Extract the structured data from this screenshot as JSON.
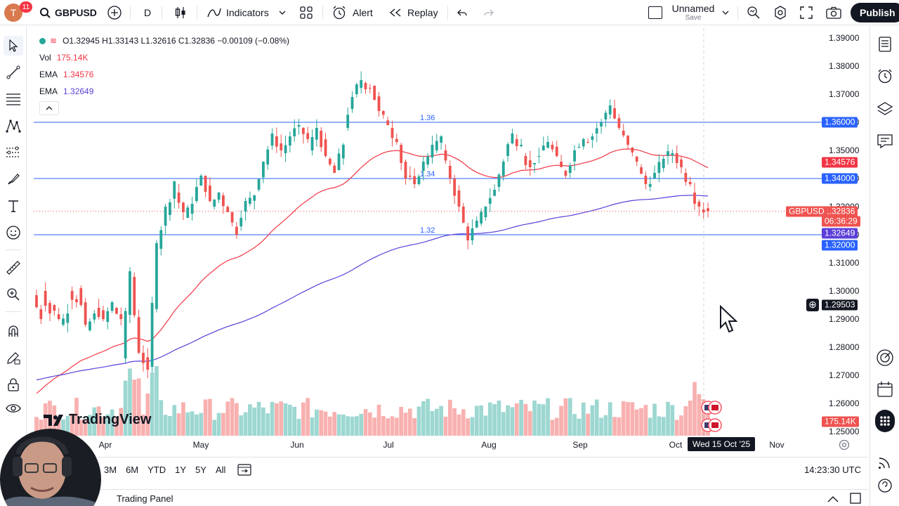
{
  "topbar": {
    "avatar_letter": "T",
    "notification_count": "11",
    "symbol": "GBPUSD",
    "interval": "D",
    "indicators_label": "Indicators",
    "alert_label": "Alert",
    "replay_label": "Replay",
    "layout_name": "Unnamed",
    "layout_status": "Save",
    "publish_label": "Publish"
  },
  "legend": {
    "ohlc": "O1.32945 H1.33143 L1.32616 C1.32836 −0.00109 (−0.08%)",
    "vol_label": "Vol",
    "vol_value": "175.14K",
    "ema1_label": "EMA",
    "ema1_value": "1.34576",
    "ema2_label": "EMA",
    "ema2_value": "1.32649"
  },
  "price_axis": {
    "ticks": [
      "1.39000",
      "1.38000",
      "1.37000",
      "1.36000",
      "1.35000",
      "1.34000",
      "1.33000",
      "1.32000",
      "1.31000",
      "1.30000",
      "1.29000",
      "1.28000",
      "1.27000",
      "1.26000",
      "1.25000"
    ],
    "labels": {
      "line_136": "1.36000",
      "ema50": "1.34576",
      "line_134": "1.34000",
      "last_price": "1.32836",
      "countdown": "06:36:29",
      "ema200": "1.32649",
      "line_132": "1.32000",
      "crosshair": "1.29503",
      "volume": "175.14K"
    },
    "symbol_tag": "GBPUSD"
  },
  "time_axis": {
    "ticks": [
      "Apr",
      "May",
      "Jun",
      "Jul",
      "Aug",
      "Sep",
      "Oct",
      "Nov"
    ],
    "crosshair_date": "Wed 15 Oct '25"
  },
  "level_labels": [
    "1.36",
    "1.34",
    "1.32"
  ],
  "watermark": "TradingView",
  "range_bar": {
    "ranges": [
      "3M",
      "6M",
      "YTD",
      "1Y",
      "5Y",
      "All"
    ],
    "clock": "14:23:30 UTC"
  },
  "panel": {
    "label": "Trading Panel"
  },
  "colors": {
    "up": "#26a69a",
    "down": "#ef5350",
    "ema50": "#f23645",
    "ema200": "#5b3fd8",
    "level_line": "#2962ff",
    "accent": "#2962ff"
  },
  "chart_data": {
    "type": "candlestick",
    "symbol": "GBPUSD",
    "interval": "1D",
    "x_range": [
      "2025-03-05",
      "2025-11-10"
    ],
    "ylim": [
      1.25,
      1.39
    ],
    "horizontal_levels": [
      1.36,
      1.34,
      1.32
    ],
    "last_price": 1.32836,
    "anchors": [
      [
        1.2985,
        1.29
      ],
      [
        1.3,
        1.292
      ],
      [
        1.295,
        1.29
      ],
      [
        1.288,
        1.292
      ],
      [
        1.3,
        1.296
      ],
      [
        1.301,
        1.288
      ],
      [
        1.286,
        1.292
      ],
      [
        1.294,
        1.29
      ],
      [
        1.289,
        1.296
      ],
      [
        1.294,
        1.29
      ],
      [
        1.276,
        1.307
      ],
      [
        1.305,
        1.278
      ],
      [
        1.278,
        1.272
      ],
      [
        1.273,
        1.317
      ],
      [
        1.315,
        1.33
      ],
      [
        1.327,
        1.339
      ],
      [
        1.335,
        1.328
      ],
      [
        1.326,
        1.331
      ],
      [
        1.332,
        1.341
      ],
      [
        1.341,
        1.332
      ],
      [
        1.33,
        1.335
      ],
      [
        1.334,
        1.328
      ],
      [
        1.328,
        1.32
      ],
      [
        1.323,
        1.332
      ],
      [
        1.331,
        1.334
      ],
      [
        1.336,
        1.346
      ],
      [
        1.345,
        1.356
      ],
      [
        1.355,
        1.35
      ],
      [
        1.349,
        1.355
      ],
      [
        1.355,
        1.359
      ],
      [
        1.358,
        1.354
      ],
      [
        1.35,
        1.358
      ],
      [
        1.357,
        1.348
      ],
      [
        1.347,
        1.342
      ],
      [
        1.343,
        1.352
      ],
      [
        1.358,
        1.369
      ],
      [
        1.37,
        1.375
      ],
      [
        1.374,
        1.372
      ],
      [
        1.373,
        1.364
      ],
      [
        1.364,
        1.359
      ],
      [
        1.358,
        1.353
      ],
      [
        1.352,
        1.34
      ],
      [
        1.341,
        1.338
      ],
      [
        1.338,
        1.346
      ],
      [
        1.345,
        1.352
      ],
      [
        1.35,
        1.355
      ],
      [
        1.35,
        1.34
      ],
      [
        1.34,
        1.33
      ],
      [
        1.33,
        1.318
      ],
      [
        1.318,
        1.325
      ],
      [
        1.324,
        1.33
      ],
      [
        1.331,
        1.336
      ],
      [
        1.337,
        1.346
      ],
      [
        1.348,
        1.356
      ],
      [
        1.354,
        1.352
      ],
      [
        1.348,
        1.344
      ],
      [
        1.345,
        1.348
      ],
      [
        1.35,
        1.353
      ],
      [
        1.352,
        1.348
      ],
      [
        1.346,
        1.341
      ],
      [
        1.342,
        1.35
      ],
      [
        1.351,
        1.354
      ],
      [
        1.353,
        1.355
      ],
      [
        1.356,
        1.36
      ],
      [
        1.361,
        1.366
      ],
      [
        1.365,
        1.358
      ],
      [
        1.357,
        1.352
      ],
      [
        1.351,
        1.346
      ],
      [
        1.344,
        1.338
      ],
      [
        1.337,
        1.342
      ],
      [
        1.342,
        1.347
      ],
      [
        1.348,
        1.349
      ],
      [
        1.349,
        1.344
      ],
      [
        1.342,
        1.338
      ],
      [
        1.335,
        1.33
      ],
      [
        1.329,
        1.3284
      ]
    ]
  }
}
